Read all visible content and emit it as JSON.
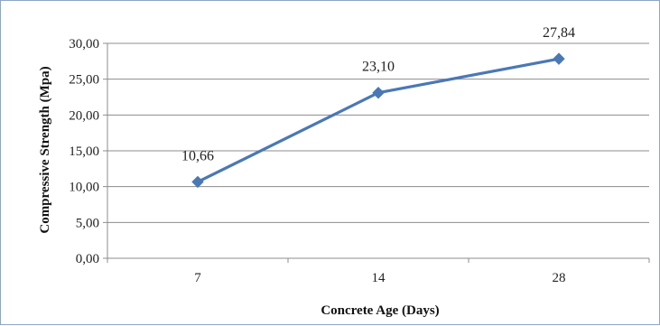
{
  "chart_data": {
    "type": "line",
    "xlabel": "Concrete Age (Days)",
    "ylabel": "Compressive Strength (Mpa)",
    "categories": [
      "7",
      "14",
      "28"
    ],
    "series": [
      {
        "values": [
          10.66,
          23.1,
          27.84
        ],
        "data_labels": [
          "10,66",
          "23,10",
          "27,84"
        ],
        "color": "#4a78b5"
      }
    ],
    "ylim": [
      0,
      30
    ],
    "yticks": [
      "0,00",
      "5,00",
      "10,00",
      "15,00",
      "20,00",
      "25,00",
      "30,00"
    ],
    "grid": true,
    "legend": "none"
  }
}
